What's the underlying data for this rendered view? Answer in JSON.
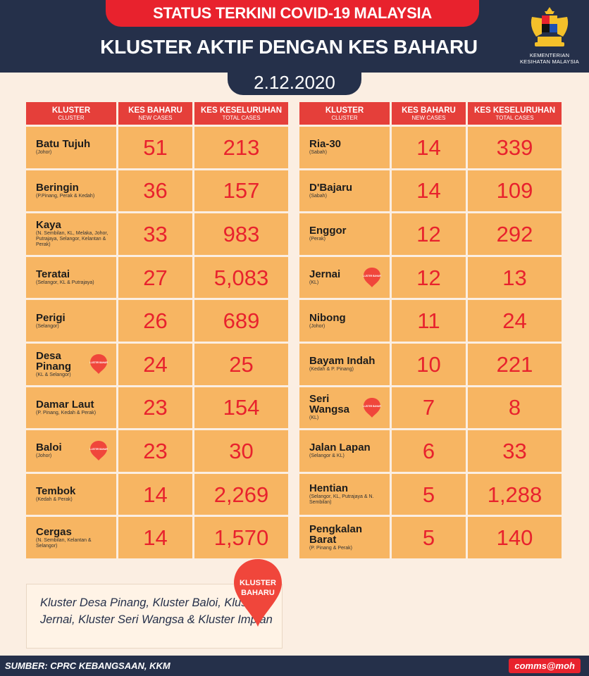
{
  "header": {
    "top_title": "STATUS TERKINI COVID-19 MALAYSIA",
    "main_title": "KLUSTER AKTIF DENGAN KES BAHARU",
    "date": "2.12.2020",
    "ministry": "KEMENTERIAN KESIHATAN MALAYSIA"
  },
  "columns": {
    "cluster_ms": "KLUSTER",
    "cluster_en": "CLUSTER",
    "new_ms": "KES BAHARU",
    "new_en": "NEW CASES",
    "total_ms": "KES KESELURUHAN",
    "total_en": "TOTAL CASES"
  },
  "badge_small": "KLUSTER BAHARU",
  "left_rows": [
    {
      "name": "Batu Tujuh",
      "location": "(Johor)",
      "new": "51",
      "total": "213",
      "is_new": false
    },
    {
      "name": "Beringin",
      "location": "(P.Pinang, Perak & Kedah)",
      "new": "36",
      "total": "157",
      "is_new": false
    },
    {
      "name": "Kaya",
      "location": "(N. Sembilan, KL, Melaka, Johor, Putrajaya, Selangor, Kelantan & Perak)",
      "new": "33",
      "total": "983",
      "is_new": false
    },
    {
      "name": "Teratai",
      "location": "(Selangor, KL & Putrajaya)",
      "new": "27",
      "total": "5,083",
      "is_new": false
    },
    {
      "name": "Perigi",
      "location": "(Selangor)",
      "new": "26",
      "total": "689",
      "is_new": false
    },
    {
      "name": "Desa Pinang",
      "location": "(KL & Selangor)",
      "new": "24",
      "total": "25",
      "is_new": true
    },
    {
      "name": "Damar Laut",
      "location": "(P. Pinang, Kedah & Perak)",
      "new": "23",
      "total": "154",
      "is_new": false
    },
    {
      "name": "Baloi",
      "location": "(Johor)",
      "new": "23",
      "total": "30",
      "is_new": true
    },
    {
      "name": "Tembok",
      "location": "(Kedah & Perak)",
      "new": "14",
      "total": "2,269",
      "is_new": false
    },
    {
      "name": "Cergas",
      "location": "(N. Sembilan, Kelantan & Selangor)",
      "new": "14",
      "total": "1,570",
      "is_new": false
    }
  ],
  "right_rows": [
    {
      "name": "Ria-30",
      "location": "(Sabah)",
      "new": "14",
      "total": "339",
      "is_new": false
    },
    {
      "name": "D'Bajaru",
      "location": "(Sabah)",
      "new": "14",
      "total": "109",
      "is_new": false
    },
    {
      "name": "Enggor",
      "location": "(Perak)",
      "new": "12",
      "total": "292",
      "is_new": false
    },
    {
      "name": "Jernai",
      "location": "(KL)",
      "new": "12",
      "total": "13",
      "is_new": true
    },
    {
      "name": "Nibong",
      "location": "(Johor)",
      "new": "11",
      "total": "24",
      "is_new": false
    },
    {
      "name": "Bayam Indah",
      "location": "(Kedah & P. Pinang)",
      "new": "10",
      "total": "221",
      "is_new": false
    },
    {
      "name": "Seri Wangsa",
      "location": "(KL)",
      "new": "7",
      "total": "8",
      "is_new": true
    },
    {
      "name": "Jalan Lapan",
      "location": "(Selangor & KL)",
      "new": "6",
      "total": "33",
      "is_new": false
    },
    {
      "name": "Hentian",
      "location": "(Selangor, KL, Putrajaya & N. Sembilan)",
      "new": "5",
      "total": "1,288",
      "is_new": false
    },
    {
      "name": "Pengkalan Barat",
      "location": "(P. Pinang & Perak)",
      "new": "5",
      "total": "140",
      "is_new": false
    }
  ],
  "note": {
    "badge_line1": "KLUSTER",
    "badge_line2": "BAHARU",
    "text": "Kluster Desa Pinang, Kluster Baloi, Kluster Jernai, Kluster Seri Wangsa & Kluster Impian"
  },
  "footer": {
    "source": "SUMBER: CPRC KEBANGSAAN, KKM",
    "credit": "comms@moh"
  },
  "colors": {
    "navy": "#25304a",
    "red": "#e8222d",
    "header_red": "#e53f3a",
    "cell_orange": "#f7b562",
    "background": "#fbeee2"
  }
}
